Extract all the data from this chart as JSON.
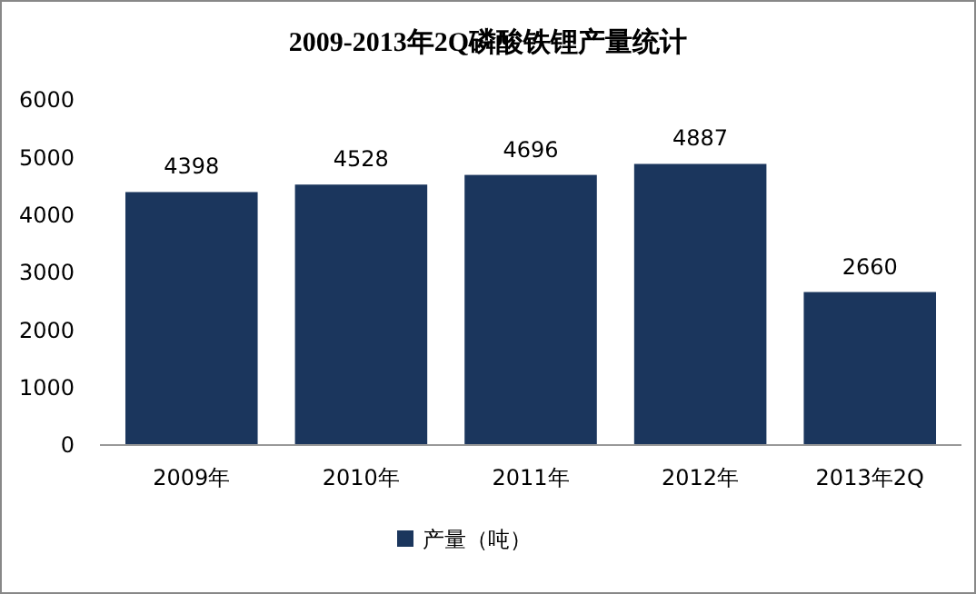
{
  "chart_data": {
    "type": "bar",
    "title": "2009-2013年2Q磷酸铁锂产量统计",
    "categories": [
      "2009年",
      "2010年",
      "2011年",
      "2012年",
      "2013年2Q"
    ],
    "series": [
      {
        "name": "产量（吨）",
        "color": "#1b365d",
        "values": [
          4398,
          4528,
          4696,
          4887,
          2660
        ]
      }
    ],
    "ylim": [
      0,
      6000
    ],
    "yticks": [
      0,
      1000,
      2000,
      3000,
      4000,
      5000,
      6000
    ],
    "data_labels": true,
    "grid": false,
    "legend": "bottom"
  }
}
